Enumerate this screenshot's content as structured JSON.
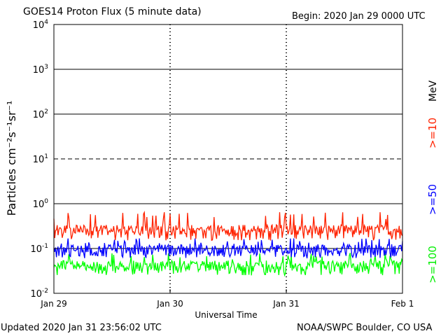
{
  "header": {
    "title": "GOES14 Proton Flux (5 minute data)",
    "begin": "Begin: 2020 Jan 29 0000 UTC"
  },
  "footer": {
    "updated": "Updated 2020 Jan 31 23:56:02 UTC",
    "credit": "NOAA/SWPC Boulder, CO USA"
  },
  "chart_data": {
    "type": "line",
    "title": "GOES14 Proton Flux (5 minute data)",
    "xlabel": "Universal Time",
    "ylabel": "Particles cm⁻²s⁻¹sr⁻¹",
    "yscale": "log",
    "ylim": [
      0.01,
      10000
    ],
    "xlim_days": [
      0,
      3
    ],
    "x_tick_labels": [
      "Jan 29",
      "Jan 30",
      "Jan 31",
      "Feb 1"
    ],
    "y_tick_labels": [
      {
        "base": "10",
        "exp": "-2"
      },
      {
        "base": "10",
        "exp": "-1"
      },
      {
        "base": "10",
        "exp": "0"
      },
      {
        "base": "10",
        "exp": "1"
      },
      {
        "base": "10",
        "exp": "2"
      },
      {
        "base": "10",
        "exp": "3"
      },
      {
        "base": "10",
        "exp": "4"
      }
    ],
    "unit_label": "MeV",
    "series": [
      {
        "name": ">=10",
        "color": "#ff2200",
        "typical": 0.25,
        "low": 0.15,
        "high": 0.65
      },
      {
        "name": ">=50",
        "color": "#0000ff",
        "typical": 0.09,
        "low": 0.06,
        "high": 0.17
      },
      {
        "name": ">=100",
        "color": "#00ff00",
        "typical": 0.04,
        "low": 0.025,
        "high": 0.08
      }
    ]
  }
}
